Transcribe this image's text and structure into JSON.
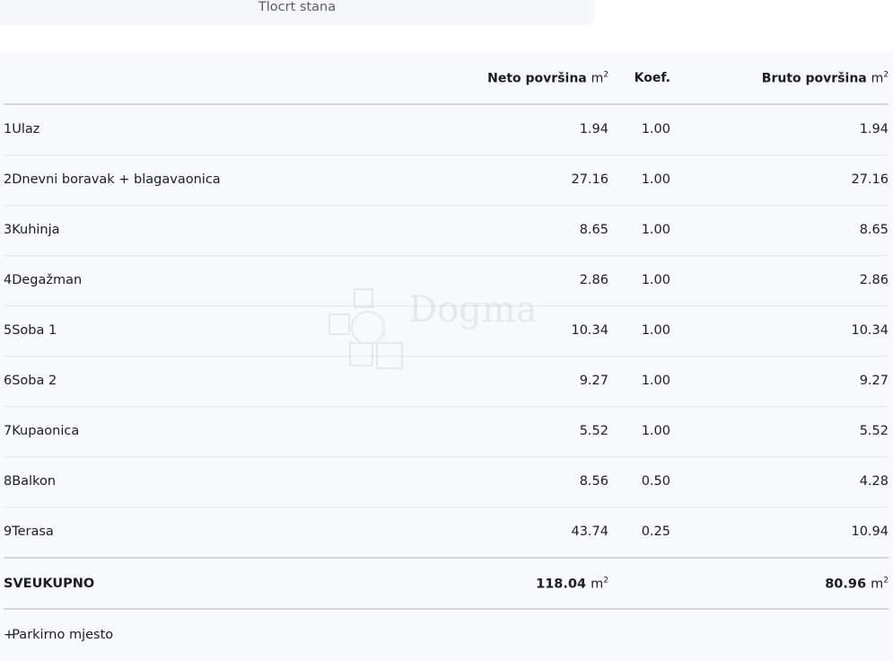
{
  "top_card": {
    "label": "Tlocrt stana"
  },
  "headers": {
    "neto": "Neto površina",
    "koef": "Koef.",
    "bruto": "Bruto površina",
    "unit": "m",
    "unit_exp": "2"
  },
  "rows": [
    {
      "num": "1",
      "name": "Ulaz",
      "neto": "1.94",
      "koef": "1.00",
      "bruto": "1.94"
    },
    {
      "num": "2",
      "name": "Dnevni boravak + blagavaonica",
      "neto": "27.16",
      "koef": "1.00",
      "bruto": "27.16"
    },
    {
      "num": "3",
      "name": "Kuhinja",
      "neto": "8.65",
      "koef": "1.00",
      "bruto": "8.65"
    },
    {
      "num": "4",
      "name": "Degažman",
      "neto": "2.86",
      "koef": "1.00",
      "bruto": "2.86"
    },
    {
      "num": "5",
      "name": "Soba 1",
      "neto": "10.34",
      "koef": "1.00",
      "bruto": "10.34"
    },
    {
      "num": "6",
      "name": "Soba 2",
      "neto": "9.27",
      "koef": "1.00",
      "bruto": "9.27"
    },
    {
      "num": "7",
      "name": "Kupaonica",
      "neto": "5.52",
      "koef": "1.00",
      "bruto": "5.52"
    },
    {
      "num": "8",
      "name": "Balkon",
      "neto": "8.56",
      "koef": "0.50",
      "bruto": "4.28"
    },
    {
      "num": "9",
      "name": "Terasa",
      "neto": "43.74",
      "koef": "0.25",
      "bruto": "10.94"
    }
  ],
  "total": {
    "label": "SVEUKUPNO",
    "neto": "118.04",
    "bruto": "80.96"
  },
  "extra": {
    "prefix": "+",
    "label": "Parkirno mjesto"
  },
  "watermark": {
    "text": "Dogma"
  }
}
